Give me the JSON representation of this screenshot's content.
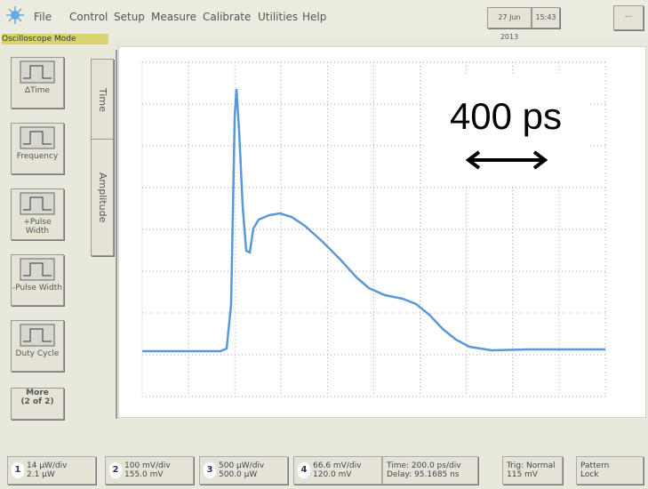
{
  "menu": {
    "items": [
      "File",
      "Control",
      "Setup",
      "Measure",
      "Calibrate",
      "Utilities",
      "Help"
    ],
    "date": "27 Jun 2013",
    "time": "15:43"
  },
  "mode": "Oscilloscope Mode",
  "tabs": [
    "Time",
    "Amplitude"
  ],
  "measurements": [
    "ΔTime",
    "Frequency",
    "+Pulse Width",
    "-Pulse Width",
    "Duty Cycle"
  ],
  "more": {
    "line1": "More",
    "line2": "(2 of 2)"
  },
  "annotation": "400 ps",
  "channels": [
    {
      "number": "1",
      "line1": "14 µW/div",
      "line2": "2.1 µW"
    },
    {
      "number": "2",
      "line1": "100 mV/div",
      "line2": "155.0 mV"
    },
    {
      "number": "3",
      "line1": "500 µW/div",
      "line2": "500.0 µW"
    },
    {
      "number": "4",
      "line1": "66.6 mV/div",
      "line2": "120.0 mV"
    }
  ],
  "timebase": {
    "line1": "Time: 200.0 ps/div",
    "line2": "Delay: 95.1685 ns"
  },
  "trigger": {
    "line1": "Trig: Normal",
    "line2": "115 mV"
  },
  "pattern_lock": {
    "line1": "Pattern",
    "line2": "Lock"
  }
}
